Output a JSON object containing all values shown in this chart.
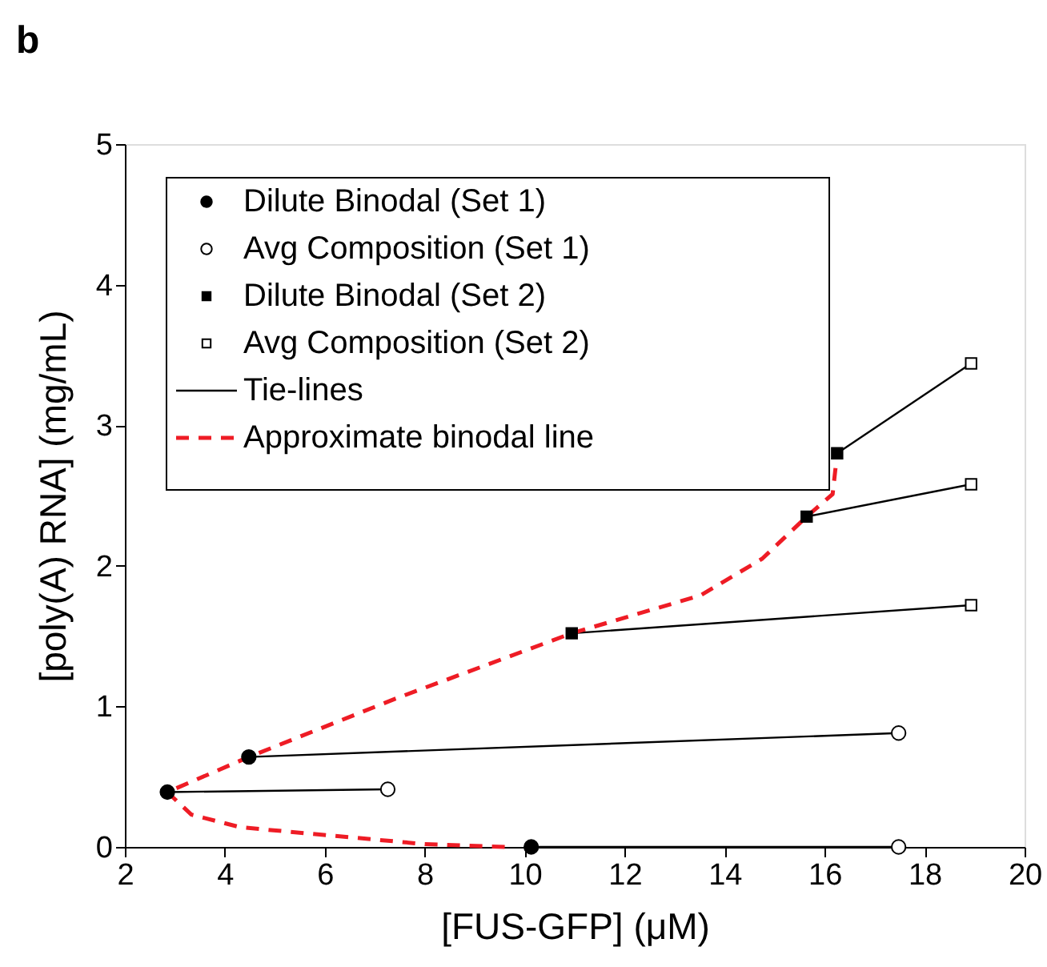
{
  "chart_data": {
    "type": "scatter",
    "title": "b",
    "xlabel": "[FUS-GFP] (μM)",
    "ylabel": "[poly(A) RNA] (mg/mL)",
    "xlim": [
      2,
      20
    ],
    "xticks": [
      2,
      4,
      6,
      8,
      10,
      12,
      14,
      16,
      18,
      20
    ],
    "ylim": [
      0,
      5
    ],
    "yticks": [
      0,
      1,
      2,
      3,
      4,
      5
    ],
    "grid": false,
    "legend": "top left",
    "series": [
      {
        "name": "Dilute Binodal (Set 1)",
        "marker": "circle",
        "color": "#000000",
        "x": [
          2.85,
          4.48,
          10.13
        ],
        "values": [
          0.39,
          0.64,
          0
        ]
      },
      {
        "name": "Avg Composition (Set 1)",
        "marker": "circle",
        "color": "#ffffff",
        "x": [
          7.26,
          17.48,
          17.48
        ],
        "values": [
          0.41,
          0.81,
          0
        ]
      },
      {
        "name": "Dilute Binodal (Set 2)",
        "marker": "square",
        "color": "#000000",
        "x": [
          10.94,
          15.64,
          16.25
        ],
        "values": [
          1.52,
          2.35,
          2.8
        ]
      },
      {
        "name": "Avg Composition (Set 2)",
        "marker": "square",
        "color": "#ffffff",
        "x": [
          18.93,
          18.93,
          18.93
        ],
        "values": [
          1.72,
          2.58,
          3.44
        ]
      },
      {
        "name": "Tie-lines",
        "type": "line",
        "line_style": "solid",
        "color": "#000000",
        "x": [
          2.85,
          7.26,
          null,
          4.48,
          17.48,
          null,
          10.13,
          17.48,
          null,
          10.94,
          18.93,
          null,
          15.64,
          18.93,
          null,
          16.25,
          18.93
        ],
        "values": [
          0.39,
          0.41,
          null,
          0.64,
          0.81,
          null,
          0,
          0,
          null,
          1.52,
          1.72,
          null,
          2.35,
          2.58,
          null,
          2.8,
          3.44
        ]
      },
      {
        "name": "Approximate binodal line",
        "type": "line",
        "line_style": "dashed",
        "color": "#ee1c25",
        "x": [
          9.6,
          8.0,
          6.15,
          4.31,
          3.33,
          2.85,
          4.48,
          7.38,
          10.94,
          13.52,
          14.75,
          15.64,
          16.16,
          16.25
        ],
        "values": [
          0,
          0.02,
          0.08,
          0.14,
          0.23,
          0.39,
          0.64,
          1.05,
          1.52,
          1.79,
          2.05,
          2.35,
          2.51,
          2.8
        ]
      }
    ]
  }
}
